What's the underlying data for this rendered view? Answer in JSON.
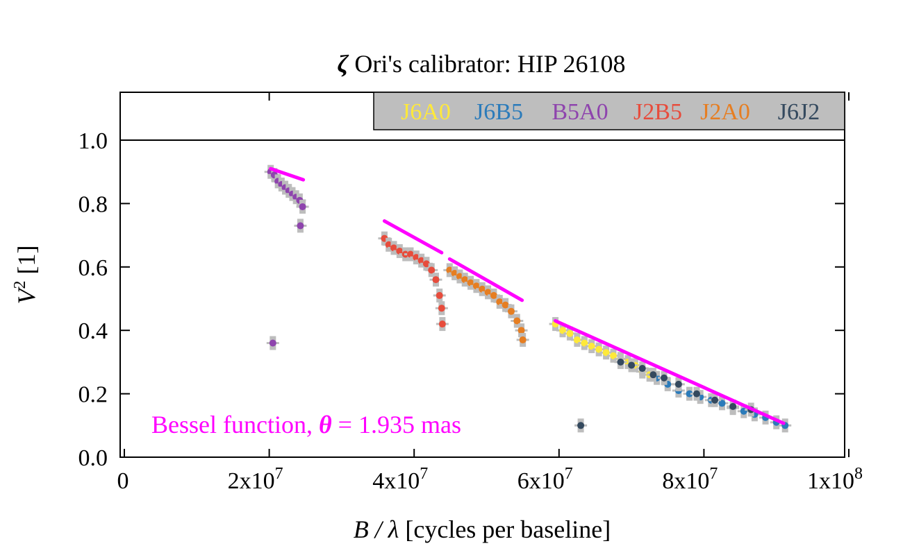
{
  "chart_data": {
    "type": "scatter",
    "title_symbol": "ζ",
    "title_rest": " Ori's calibrator: HIP 26108",
    "xlabel": {
      "var": "B / λ",
      "rest": " [cycles per baseline]"
    },
    "ylabel": {
      "var": "V",
      "sup": "2",
      "rest": " [1]"
    },
    "xlim": [
      0,
      100000000
    ],
    "ylim": [
      0,
      1.15
    ],
    "x_ticks": [
      {
        "value": 0,
        "base": "0",
        "exp": ""
      },
      {
        "value": 20000000,
        "base": "2x10",
        "exp": "7"
      },
      {
        "value": 40000000,
        "base": "4x10",
        "exp": "7"
      },
      {
        "value": 60000000,
        "base": "6x10",
        "exp": "7"
      },
      {
        "value": 80000000,
        "base": "8x10",
        "exp": "7"
      },
      {
        "value": 100000000,
        "base": "1x10",
        "exp": "8"
      }
    ],
    "y_ticks": [
      {
        "value": 0.0,
        "label": "0.0"
      },
      {
        "value": 0.2,
        "label": "0.2"
      },
      {
        "value": 0.4,
        "label": "0.4"
      },
      {
        "value": 0.6,
        "label": "0.6"
      },
      {
        "value": 0.8,
        "label": "0.8"
      },
      {
        "value": 1.0,
        "label": "1.0"
      }
    ],
    "reference_line_y": 1.0,
    "grid": false,
    "legend": {
      "placement": "top-right",
      "background": "#bebebe"
    },
    "series": [
      {
        "name": "J6A0",
        "color": "#ffe93a",
        "points": [
          [
            59500000,
            0.42
          ],
          [
            60500000,
            0.4
          ],
          [
            61500000,
            0.39
          ],
          [
            62500000,
            0.37
          ],
          [
            63500000,
            0.36
          ],
          [
            64500000,
            0.35
          ],
          [
            65500000,
            0.34
          ],
          [
            66500000,
            0.33
          ],
          [
            67500000,
            0.32
          ],
          [
            68500000,
            0.31
          ],
          [
            69500000,
            0.3
          ],
          [
            70500000,
            0.29
          ],
          [
            71500000,
            0.27
          ],
          [
            72500000,
            0.26
          ]
        ]
      },
      {
        "name": "J6B5",
        "color": "#2b7bba",
        "points": [
          [
            73500000,
            0.25
          ],
          [
            75000000,
            0.23
          ],
          [
            76500000,
            0.21
          ],
          [
            78000000,
            0.2
          ],
          [
            79500000,
            0.19
          ],
          [
            81000000,
            0.18
          ],
          [
            82500000,
            0.17
          ],
          [
            84000000,
            0.155
          ],
          [
            85500000,
            0.145
          ],
          [
            87000000,
            0.135
          ],
          [
            88500000,
            0.125
          ],
          [
            90000000,
            0.11
          ],
          [
            91200000,
            0.1
          ]
        ]
      },
      {
        "name": "B5A0",
        "color": "#8e44ad",
        "points": [
          [
            20200000,
            0.9
          ],
          [
            20700000,
            0.89
          ],
          [
            21200000,
            0.87
          ],
          [
            21700000,
            0.86
          ],
          [
            22200000,
            0.85
          ],
          [
            22700000,
            0.84
          ],
          [
            23200000,
            0.83
          ],
          [
            23700000,
            0.82
          ],
          [
            24200000,
            0.81
          ],
          [
            24600000,
            0.79
          ],
          [
            20500000,
            0.36
          ],
          [
            24300000,
            0.73
          ]
        ]
      },
      {
        "name": "J2B5",
        "color": "#e74c3c",
        "points": [
          [
            35900000,
            0.69
          ],
          [
            36500000,
            0.67
          ],
          [
            37200000,
            0.66
          ],
          [
            38000000,
            0.65
          ],
          [
            38800000,
            0.64
          ],
          [
            39500000,
            0.64
          ],
          [
            40300000,
            0.63
          ],
          [
            41000000,
            0.62
          ],
          [
            41700000,
            0.61
          ],
          [
            42400000,
            0.59
          ],
          [
            43000000,
            0.56
          ],
          [
            43500000,
            0.51
          ],
          [
            43800000,
            0.47
          ],
          [
            43900000,
            0.42
          ]
        ]
      },
      {
        "name": "J2A0",
        "color": "#e67e22",
        "points": [
          [
            44900000,
            0.59
          ],
          [
            45600000,
            0.58
          ],
          [
            46300000,
            0.57
          ],
          [
            47000000,
            0.56
          ],
          [
            47800000,
            0.55
          ],
          [
            48600000,
            0.54
          ],
          [
            49400000,
            0.53
          ],
          [
            50200000,
            0.52
          ],
          [
            51000000,
            0.51
          ],
          [
            51800000,
            0.49
          ],
          [
            52600000,
            0.48
          ],
          [
            53400000,
            0.46
          ],
          [
            54200000,
            0.43
          ],
          [
            54800000,
            0.4
          ],
          [
            55000000,
            0.37
          ]
        ]
      },
      {
        "name": "J6J2",
        "color": "#34495e",
        "points": [
          [
            68500000,
            0.3
          ],
          [
            70000000,
            0.29
          ],
          [
            71500000,
            0.28
          ],
          [
            73000000,
            0.26
          ],
          [
            74500000,
            0.25
          ],
          [
            76500000,
            0.23
          ],
          [
            79000000,
            0.2
          ],
          [
            81500000,
            0.18
          ],
          [
            84000000,
            0.16
          ],
          [
            86500000,
            0.15
          ],
          [
            63000000,
            0.1
          ]
        ]
      }
    ],
    "models": [
      {
        "color": "#ff00ff",
        "segments": [
          [
            [
              20200000,
              0.91
            ],
            [
              24700000,
              0.875
            ]
          ],
          [
            [
              35900000,
              0.745
            ],
            [
              43800000,
              0.645
            ]
          ],
          [
            [
              44900000,
              0.625
            ],
            [
              54900000,
              0.495
            ]
          ],
          [
            [
              59500000,
              0.43
            ],
            [
              91000000,
              0.107
            ]
          ]
        ]
      }
    ],
    "annotation": {
      "text_before": "Bessel function, ",
      "symbol": "θ",
      "text_after": " = 1.935 mas",
      "color": "#ff00ff"
    }
  }
}
